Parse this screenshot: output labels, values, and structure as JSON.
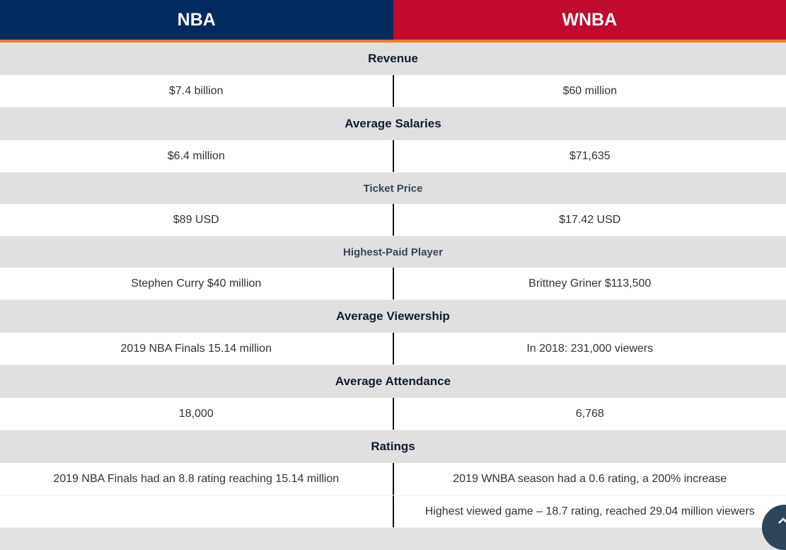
{
  "header": {
    "left": "NBA",
    "right": "WNBA"
  },
  "sections": [
    {
      "title": "Revenue",
      "rows": [
        {
          "nba": "$7.4 billion",
          "wnba": "$60 million"
        }
      ]
    },
    {
      "title": "Average Salaries",
      "rows": [
        {
          "nba": "$6.4 million",
          "wnba": "$71,635"
        }
      ]
    },
    {
      "title": "Ticket Price",
      "rows": [
        {
          "nba": "$89 USD",
          "wnba": "$17.42 USD"
        }
      ]
    },
    {
      "title": "Highest-Paid Player",
      "rows": [
        {
          "nba": "Stephen Curry $40 million",
          "wnba": "Brittney Griner $113,500"
        }
      ]
    },
    {
      "title": "Average Viewership",
      "rows": [
        {
          "nba": "2019 NBA Finals 15.14 million",
          "wnba": "In 2018: 231,000 viewers"
        }
      ]
    },
    {
      "title": "Average Attendance",
      "rows": [
        {
          "nba": "18,000",
          "wnba": "6,768"
        }
      ]
    },
    {
      "title": "Ratings",
      "rows": [
        {
          "nba": "2019 NBA Finals had an 8.8 rating reaching 15.14 million",
          "wnba": "2019 WNBA season had a 0.6 rating, a 200% increase"
        },
        {
          "wnba": "Highest viewed game – 18.7 rating, reached 29.04 million viewers"
        }
      ]
    }
  ]
}
